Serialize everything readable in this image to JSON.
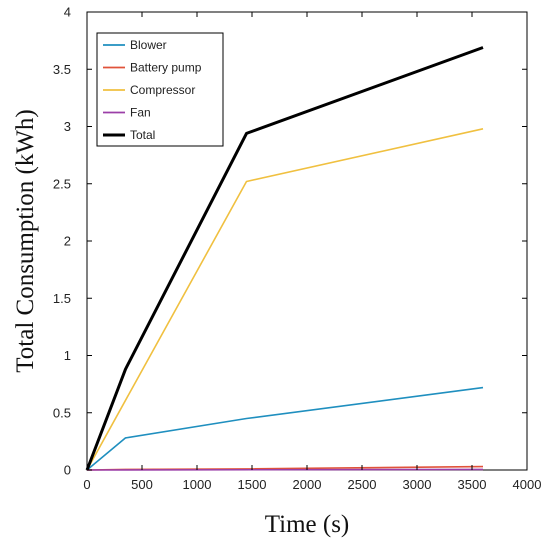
{
  "chart_data": {
    "type": "line",
    "title": "",
    "xlabel": "Time (s)",
    "ylabel": "Total Consumption (kWh)",
    "xlim": [
      0,
      4000
    ],
    "ylim": [
      0,
      4
    ],
    "x_ticks": [
      "0",
      "500",
      "1000",
      "1500",
      "2000",
      "2500",
      "3000",
      "3500",
      "4000"
    ],
    "y_ticks": [
      "0",
      "0.5",
      "1",
      "1.5",
      "2",
      "2.5",
      "3",
      "3.5",
      "4"
    ],
    "grid": false,
    "legend_position": "top-left",
    "series": [
      {
        "name": "Blower",
        "color": "#1f8fbf",
        "x": [
          0,
          350,
          1450,
          3600
        ],
        "y": [
          0,
          0.28,
          0.45,
          0.72
        ]
      },
      {
        "name": "Battery pump",
        "color": "#e0533a",
        "x": [
          0,
          350,
          1450,
          3600
        ],
        "y": [
          0,
          0.005,
          0.01,
          0.03
        ]
      },
      {
        "name": "Compressor",
        "color": "#f0c040",
        "x": [
          0,
          1450,
          3600
        ],
        "y": [
          0,
          2.52,
          2.98
        ]
      },
      {
        "name": "Fan",
        "color": "#9b3fa8",
        "x": [
          0,
          3600
        ],
        "y": [
          0,
          0.005
        ]
      },
      {
        "name": "Total",
        "color": "#000000",
        "x": [
          0,
          350,
          1450,
          3600
        ],
        "y": [
          0,
          0.88,
          2.94,
          3.69
        ]
      }
    ]
  }
}
